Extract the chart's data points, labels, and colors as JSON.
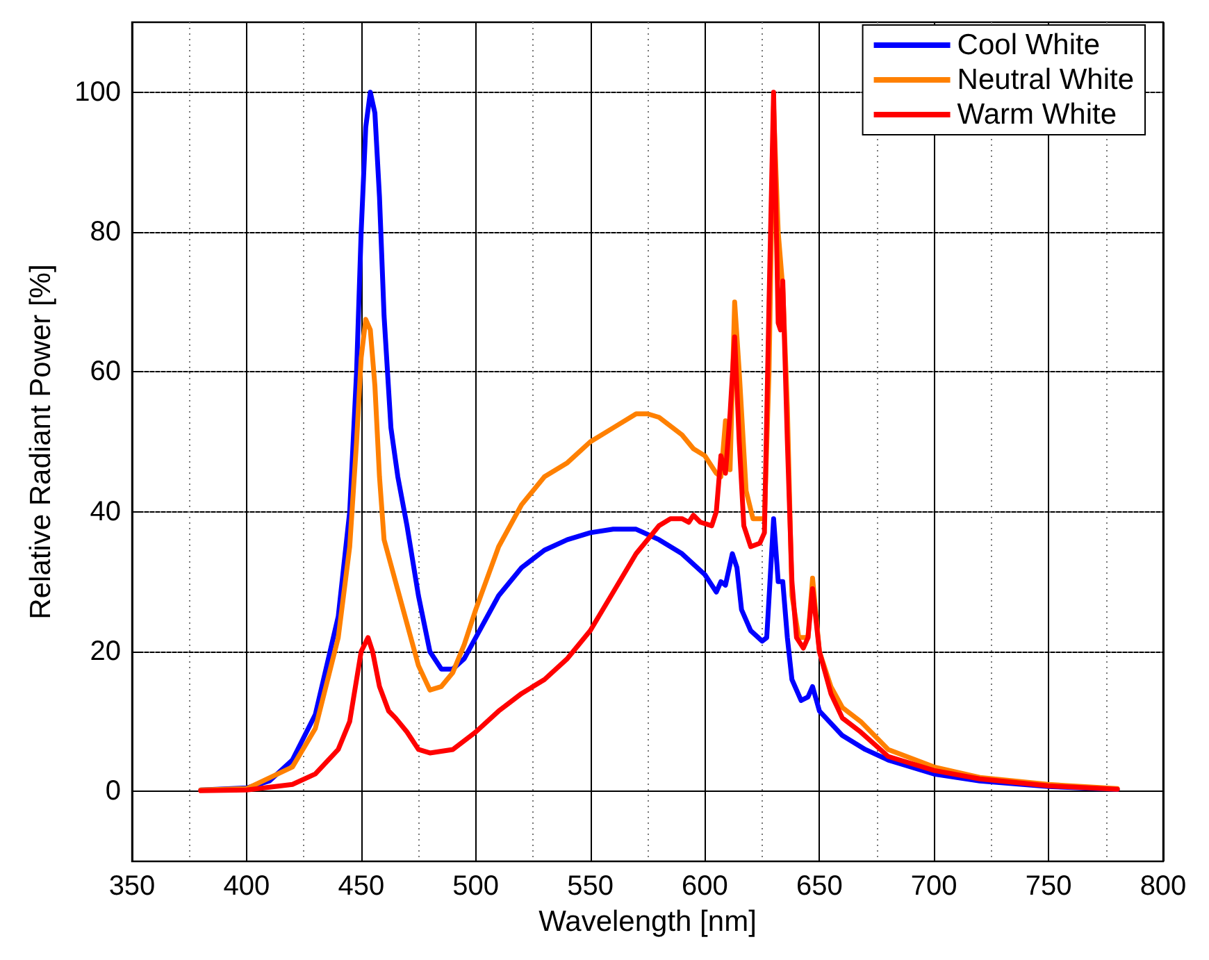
{
  "chart_data": {
    "type": "line",
    "xlabel": "Wavelength [nm]",
    "ylabel": "Relative Radiant Power [%]",
    "xlim": [
      350,
      800
    ],
    "xticks": [
      350,
      400,
      450,
      500,
      550,
      600,
      650,
      700,
      750,
      800
    ],
    "ylim": [
      -10,
      110
    ],
    "yticks": [
      0,
      20,
      40,
      60,
      80,
      100
    ],
    "grid": true,
    "legend": "top right",
    "marker": "none",
    "line_style": "solid",
    "series": [
      {
        "name": "Cool White",
        "color": "#0000ff",
        "x": [
          380,
          400,
          410,
          420,
          430,
          440,
          445,
          448,
          450,
          452,
          454,
          456,
          458,
          460,
          463,
          466,
          470,
          475,
          480,
          485,
          490,
          495,
          500,
          510,
          520,
          530,
          540,
          550,
          560,
          570,
          580,
          590,
          600,
          605,
          607,
          609,
          612,
          614,
          616,
          620,
          625,
          627,
          630,
          632,
          634,
          636,
          638,
          642,
          645,
          647,
          650,
          660,
          670,
          680,
          700,
          720,
          750,
          780
        ],
        "values": [
          0.2,
          0.5,
          1.5,
          4.5,
          11,
          25,
          40,
          60,
          80,
          95,
          100,
          97,
          85,
          68,
          52,
          45,
          38,
          28,
          20,
          17.5,
          17.5,
          19,
          22,
          28,
          32,
          34.5,
          36,
          37,
          37.5,
          37.5,
          36,
          34,
          31,
          28.5,
          30,
          29.5,
          34,
          32,
          26,
          23,
          21.5,
          22,
          39,
          30,
          30,
          22,
          16,
          13,
          13.5,
          15,
          11.5,
          8,
          6,
          4.5,
          2.5,
          1.5,
          0.7,
          0.3
        ]
      },
      {
        "name": "Neutral White",
        "color": "#ff8000",
        "x": [
          380,
          400,
          420,
          430,
          440,
          445,
          448,
          450,
          452,
          454,
          456,
          458,
          460,
          465,
          470,
          475,
          480,
          485,
          490,
          495,
          500,
          510,
          520,
          530,
          540,
          550,
          560,
          570,
          575,
          580,
          590,
          595,
          600,
          605,
          607,
          609,
          611,
          613,
          615,
          618,
          621,
          624,
          626,
          628,
          630,
          632,
          634,
          636,
          638,
          641,
          645,
          647,
          650,
          655,
          660,
          668,
          680,
          700,
          720,
          750,
          780
        ],
        "values": [
          0.2,
          0.4,
          3.5,
          9,
          22,
          35,
          50,
          62,
          67.5,
          66,
          58,
          45,
          36,
          30,
          24,
          18,
          14.5,
          15,
          17,
          21,
          26,
          35,
          41,
          45,
          47,
          50,
          52,
          54,
          54,
          53.5,
          51,
          49,
          48,
          45.5,
          45,
          53,
          46,
          70,
          60,
          43,
          39,
          39,
          39,
          60,
          98,
          80,
          72,
          55,
          28,
          22,
          22,
          30.5,
          20,
          15,
          12,
          10,
          6,
          3.5,
          2,
          1,
          0.4
        ]
      },
      {
        "name": "Warm White",
        "color": "#ff0000",
        "x": [
          380,
          400,
          420,
          430,
          440,
          445,
          448,
          450,
          453,
          455,
          458,
          462,
          465,
          470,
          475,
          480,
          490,
          500,
          510,
          520,
          530,
          540,
          550,
          560,
          570,
          580,
          585,
          590,
          593,
          595,
          598,
          603,
          605,
          607,
          609,
          611,
          613,
          615,
          617,
          620,
          624,
          626,
          628,
          630,
          632,
          633,
          634,
          636,
          638,
          640,
          643,
          645,
          647,
          650,
          655,
          660,
          668,
          680,
          700,
          720,
          750,
          780
        ],
        "values": [
          0.1,
          0.2,
          1,
          2.5,
          6,
          10,
          16,
          20,
          22,
          20,
          15,
          11.5,
          10.5,
          8.5,
          6,
          5.5,
          6,
          8.5,
          11.5,
          14,
          16,
          19,
          23,
          28.5,
          34,
          38,
          39,
          39,
          38.5,
          39.5,
          38.5,
          38,
          40,
          48,
          45.5,
          54,
          65,
          50,
          38,
          35,
          35.5,
          37,
          70,
          100,
          67,
          66,
          73,
          50,
          30,
          22,
          20.5,
          22,
          29,
          20,
          14,
          10.5,
          8.5,
          5,
          3,
          1.8,
          0.8,
          0.3
        ]
      }
    ]
  }
}
